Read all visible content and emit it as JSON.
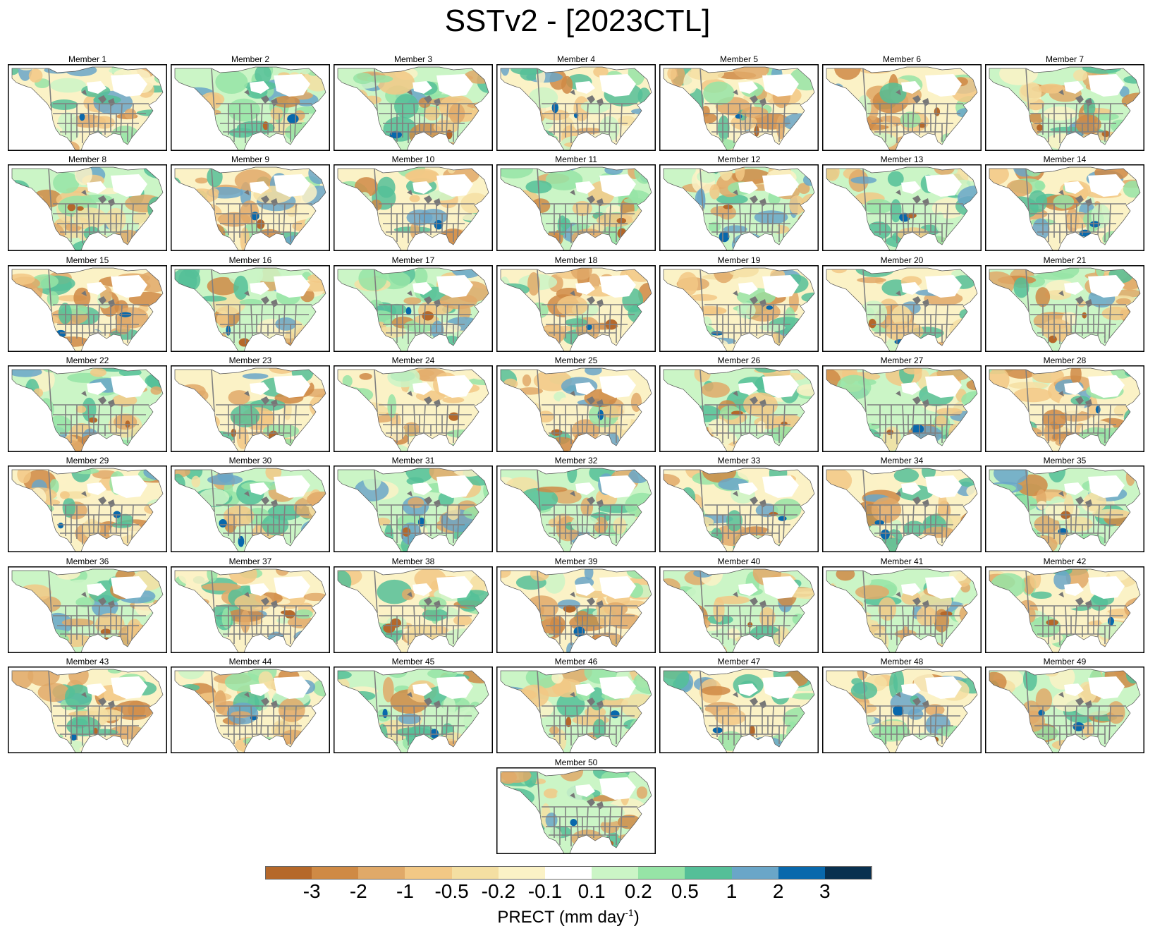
{
  "title": "SSTv2 - [2023CTL]",
  "panel_label_prefix": "Member",
  "members": [
    1,
    2,
    3,
    4,
    5,
    6,
    7,
    8,
    9,
    10,
    11,
    12,
    13,
    14,
    15,
    16,
    17,
    18,
    19,
    20,
    21,
    22,
    23,
    24,
    25,
    26,
    27,
    28,
    29,
    30,
    31,
    32,
    33,
    34,
    35,
    36,
    37,
    38,
    39,
    40,
    41,
    42,
    43,
    44,
    45,
    46,
    47,
    48,
    49,
    50
  ],
  "colorbar": {
    "colors": [
      "#b5682a",
      "#cf8a45",
      "#e0a968",
      "#f2c885",
      "#f4dfa2",
      "#fbf2c6",
      "#ffffff",
      "#cbf5c6",
      "#96e4a6",
      "#55bf98",
      "#6aa6c8",
      "#0868ac",
      "#08304f"
    ],
    "tick_labels": [
      "-3",
      "-2",
      "-1",
      "-0.5",
      "-0.2",
      "-0.1",
      "0.1",
      "0.2",
      "0.5",
      "1",
      "2",
      "3"
    ],
    "label_main": "PRECT (mm day",
    "label_sup": "-1",
    "label_end": ")"
  }
}
